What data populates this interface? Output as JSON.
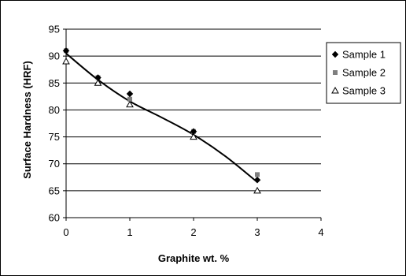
{
  "chart_data": {
    "type": "scatter",
    "title": "",
    "xlabel": "Graphite wt. %",
    "ylabel": "Surface Hardness (HRF)",
    "xlim": [
      0,
      4
    ],
    "ylim": [
      60,
      95
    ],
    "x_ticks": [
      "0",
      "1",
      "2",
      "3",
      "4"
    ],
    "y_ticks": [
      "60",
      "65",
      "70",
      "75",
      "80",
      "85",
      "90",
      "95"
    ],
    "grid": "horizontal",
    "legend_position": "right",
    "series": [
      {
        "name": "Sample 1",
        "marker": "diamond",
        "color": "#000000",
        "x": [
          0,
          0.5,
          1,
          2,
          3
        ],
        "y": [
          91,
          86,
          83,
          76,
          67
        ]
      },
      {
        "name": "Sample 2",
        "marker": "square",
        "color": "#7f7f7f",
        "x": [
          0,
          0.5,
          1,
          2,
          3
        ],
        "y": [
          91,
          86,
          82,
          76,
          68
        ]
      },
      {
        "name": "Sample 3",
        "marker": "triangle-open",
        "color": "#000000",
        "x": [
          0,
          0.5,
          1,
          2,
          3
        ],
        "y": [
          89,
          85,
          81,
          75,
          65
        ]
      }
    ],
    "trendline": {
      "x": [
        0,
        0.5,
        1,
        1.5,
        2,
        2.5,
        3
      ],
      "y": [
        90.5,
        85.6,
        81.6,
        78.6,
        75.4,
        71.4,
        66.6
      ],
      "color": "#000000"
    }
  }
}
